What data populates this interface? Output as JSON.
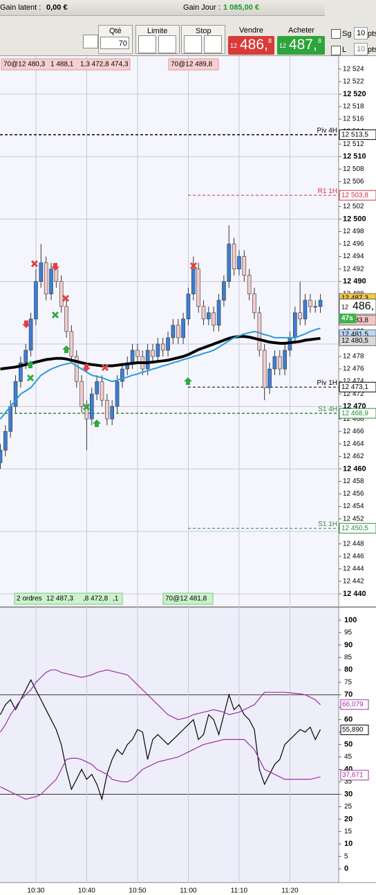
{
  "toolbar": {
    "gain_latent_label": "Gain latent :",
    "gain_latent": "0,00 €",
    "gain_jour_label": "Gain Jour :",
    "gain_jour": "1 085,00 €",
    "qty_label": "Qté",
    "qty": "70",
    "limit_label": "Limite",
    "stop_label": "Stop",
    "sell_label": "Vendre",
    "sell_prefix": "12",
    "sell_main": "486,",
    "sell_suffix": "8",
    "buy_label": "Acheter",
    "buy_prefix": "12",
    "buy_main": "487,",
    "buy_suffix": "8",
    "sg_label": "Sg",
    "sg_value": "10",
    "sg_unit": "pts",
    "l_label": "L",
    "l_value": "10",
    "l_unit": "pts"
  },
  "orders_top": [
    "70@12 480,3",
    "1 488,1",
    "1,3 472,8 474,3",
    "70@12 489,8"
  ],
  "orders_bottom": [
    "2 ordres",
    "12 487,3",
    ",8 472,8",
    ",1",
    "70@12 481,8"
  ],
  "current": {
    "prefix": "12",
    "main": "486,",
    "timer": "47s"
  },
  "chart_data": [
    {
      "type": "candlestick",
      "ylim": [
        12438,
        12526.2
      ],
      "grid": true,
      "up_color": "#3b7ed4",
      "down_color": "#f2cccc",
      "yticks": [
        {
          "value": 12440,
          "label": "12 440"
        },
        {
          "value": 12442,
          "label": "12 442"
        },
        {
          "value": 12444,
          "label": "12 444"
        },
        {
          "value": 12446,
          "label": "12 446"
        },
        {
          "value": 12448,
          "label": "12 448"
        },
        {
          "value": 12450,
          "label": "12 450"
        },
        {
          "value": 12452,
          "label": "12 452"
        },
        {
          "value": 12454,
          "label": "12 454"
        },
        {
          "value": 12456,
          "label": "12 456"
        },
        {
          "value": 12458,
          "label": "12 458"
        },
        {
          "value": 12460,
          "label": "12 460"
        },
        {
          "value": 12462,
          "label": "12 462"
        },
        {
          "value": 12464,
          "label": "12 464"
        },
        {
          "value": 12466,
          "label": "12 466"
        },
        {
          "value": 12468,
          "label": "12 468"
        },
        {
          "value": 12470,
          "label": "12 470"
        },
        {
          "value": 12472,
          "label": "12 472"
        },
        {
          "value": 12474,
          "label": "12 474"
        },
        {
          "value": 12476,
          "label": "12 476"
        },
        {
          "value": 12478,
          "label": "12 478"
        },
        {
          "value": 12480,
          "label": "12 480"
        },
        {
          "value": 12482,
          "label": "12 482"
        },
        {
          "value": 12484,
          "label": "12 484"
        },
        {
          "value": 12486,
          "label": "12 486"
        },
        {
          "value": 12488,
          "label": "12 488"
        },
        {
          "value": 12490,
          "label": "12 490"
        },
        {
          "value": 12492,
          "label": "12 492"
        },
        {
          "value": 12494,
          "label": "12 494"
        },
        {
          "value": 12496,
          "label": "12 496"
        },
        {
          "value": 12498,
          "label": "12 498"
        },
        {
          "value": 12500,
          "label": "12 500"
        },
        {
          "value": 12502,
          "label": "12 502"
        },
        {
          "value": 12504,
          "label": "12 504"
        },
        {
          "value": 12506,
          "label": "12 506"
        },
        {
          "value": 12508,
          "label": "12 508"
        },
        {
          "value": 12510,
          "label": "12 510"
        },
        {
          "value": 12512,
          "label": "12 512"
        },
        {
          "value": 12514,
          "label": "12 514"
        },
        {
          "value": 12516,
          "label": "12 516"
        },
        {
          "value": 12518,
          "label": "12 518"
        },
        {
          "value": 12520,
          "label": "12 520"
        },
        {
          "value": 12522,
          "label": "12 522"
        },
        {
          "value": 12524,
          "label": "12 524"
        }
      ],
      "open": [
        12461,
        12463,
        12466,
        12470,
        12474,
        12477,
        12479,
        12484,
        12490,
        12493,
        12488,
        12492,
        12490,
        12486,
        12482,
        12478,
        12474,
        12470,
        12468,
        12472,
        12474,
        12471,
        12468,
        12470,
        12474,
        12476,
        12477,
        12479,
        12478,
        12476,
        12479,
        12478,
        12480,
        12479,
        12481,
        12483,
        12481,
        12484,
        12488,
        12492,
        12486,
        12484,
        12485,
        12483,
        12487,
        12490,
        12496,
        12492,
        12494,
        12491,
        12488,
        12485,
        12479,
        12473,
        12476,
        12478,
        12476,
        12479,
        12481,
        12485,
        12484,
        12487,
        12486,
        12486
      ],
      "close": [
        12463,
        12466,
        12470,
        12474,
        12477,
        12479,
        12484,
        12490,
        12493,
        12488,
        12492,
        12490,
        12486,
        12482,
        12478,
        12474,
        12470,
        12468,
        12472,
        12474,
        12471,
        12468,
        12470,
        12474,
        12476,
        12477,
        12479,
        12478,
        12476,
        12479,
        12478,
        12480,
        12479,
        12481,
        12483,
        12481,
        12484,
        12488,
        12492,
        12486,
        12484,
        12485,
        12483,
        12487,
        12490,
        12496,
        12492,
        12494,
        12491,
        12488,
        12485,
        12479,
        12473,
        12476,
        12478,
        12476,
        12479,
        12481,
        12485,
        12484,
        12487,
        12486,
        12486,
        12487
      ],
      "high": [
        12464,
        12467,
        12471,
        12475,
        12478,
        12480,
        12485,
        12492,
        12496,
        12494,
        12493,
        12493,
        12491,
        12487,
        12483,
        12479,
        12475,
        12471,
        12473,
        12475,
        12475,
        12472,
        12471,
        12475,
        12477,
        12478,
        12480,
        12480,
        12479,
        12480,
        12480,
        12481,
        12481,
        12482,
        12484,
        12484,
        12485,
        12489,
        12494,
        12493,
        12487,
        12486,
        12486,
        12488,
        12491,
        12499,
        12497,
        12495,
        12495,
        12492,
        12489,
        12486,
        12480,
        12477,
        12479,
        12479,
        12480,
        12482,
        12486,
        12490,
        12488,
        12488,
        12487,
        12488
      ],
      "low": [
        12460,
        12462,
        12465,
        12469,
        12473,
        12476,
        12478,
        12483,
        12489,
        12487,
        12487,
        12489,
        12485,
        12481,
        12477,
        12473,
        12469,
        12463,
        12467,
        12471,
        12470,
        12467,
        12467,
        12469,
        12473,
        12475,
        12476,
        12477,
        12475,
        12475,
        12477,
        12477,
        12478,
        12478,
        12480,
        12480,
        12480,
        12483,
        12487,
        12485,
        12483,
        12483,
        12482,
        12482,
        12486,
        12489,
        12491,
        12491,
        12490,
        12487,
        12484,
        12478,
        12471,
        12472,
        12475,
        12475,
        12475,
        12478,
        12480,
        12483,
        12483,
        12485,
        12485,
        12485
      ],
      "series": [
        {
          "color": "#000000",
          "values": [
            12476,
            12476.1,
            12476.2,
            12476.3,
            12476.5,
            12476.7,
            12476.9,
            12477.1,
            12477.3,
            12477.5,
            12477.6,
            12477.7,
            12477.7,
            12477.6,
            12477.4,
            12477.2,
            12477,
            12476.8,
            12476.7,
            12476.6,
            12476.5,
            12476.5,
            12476.5,
            12476.6,
            12476.7,
            12476.8,
            12476.9,
            12477,
            12477,
            12477,
            12477.1,
            12477.2,
            12477.3,
            12477.4,
            12477.6,
            12477.8,
            12478,
            12478.3,
            12478.7,
            12479.1,
            12479.4,
            12479.7,
            12480,
            12480.3,
            12480.6,
            12480.9,
            12481.1,
            12481.2,
            12481.2,
            12481.1,
            12480.9,
            12480.7,
            12480.5,
            12480.3,
            12480.2,
            12480.1,
            12480.1,
            12480.2,
            12480.3,
            12480.4,
            12480.6,
            12480.7,
            12480.8,
            12480.9
          ]
        },
        {
          "color": "#2a9ad8",
          "values": [
            12468,
            12469,
            12470,
            12471,
            12472,
            12472.5,
            12473,
            12474,
            12475,
            12475.5,
            12476,
            12476.3,
            12476.6,
            12476.8,
            12477,
            12476.5,
            12476,
            12475.5,
            12475,
            12474.8,
            12474.6,
            12474.3,
            12474,
            12474.2,
            12474.5,
            12474.7,
            12475,
            12475.2,
            12475.5,
            12475.7,
            12476,
            12476.2,
            12476.5,
            12476.7,
            12477,
            12477.2,
            12477.5,
            12477.7,
            12478,
            12478.2,
            12478.5,
            12478.7,
            12479,
            12479.5,
            12480,
            12480.5,
            12481,
            12481.3,
            12481.6,
            12481.8,
            12482,
            12481.8,
            12481.5,
            12481.3,
            12481,
            12481,
            12481,
            12481,
            12481,
            12481.3,
            12481.6,
            12482,
            12482.3,
            12482.5
          ]
        }
      ],
      "levels": [
        {
          "label_text": "Piv 4H",
          "value": 12513.5,
          "value_label": "12 513,5",
          "color": "#000000",
          "full_width": true
        },
        {
          "label_text": "R1 1H",
          "value": 12503.8,
          "value_label": "12 503,8",
          "color": "#cc3344",
          "full_width": false
        },
        {
          "label_text": "Piv 1H",
          "value": 12473.1,
          "value_label": "12 473,1",
          "color": "#000000",
          "full_width": false
        },
        {
          "label_text": "S1 4H",
          "value": 12468.9,
          "value_label": "12 468,9",
          "color": "#2a8a3a",
          "full_width": true
        },
        {
          "label_text": "S1 1H",
          "value": 12450.5,
          "value_label": "12 450,5",
          "color": "#2a8a3a",
          "full_width": false
        }
      ],
      "price_labels": [
        {
          "value": 12487.3,
          "label": "12 487,3",
          "color": "#f5c842"
        },
        {
          "value": 12483.8,
          "label": "12 483,8",
          "color": "#f4c4c4"
        },
        {
          "value": 12481.5,
          "label": "12 481,5",
          "color": "#bcd8f4"
        },
        {
          "value": 12480.5,
          "label": "12 480,5",
          "color": "#d8d8d8"
        }
      ]
    },
    {
      "type": "line",
      "ylim": [
        -5.5,
        105
      ],
      "yticks": [
        0,
        5,
        10,
        15,
        20,
        25,
        30,
        35,
        40,
        45,
        50,
        55,
        60,
        65,
        70,
        75,
        80,
        85,
        90,
        95,
        100
      ],
      "hlines": [
        70,
        30
      ],
      "categories": [
        null,
        null,
        null,
        null,
        null,
        null,
        null,
        "10:30",
        null,
        null,
        null,
        null,
        null,
        null,
        null,
        null,
        null,
        "10:40",
        null,
        null,
        null,
        null,
        null,
        null,
        null,
        null,
        null,
        "10:50",
        null,
        null,
        null,
        null,
        null,
        null,
        null,
        null,
        null,
        "11:00",
        null,
        null,
        null,
        null,
        null,
        null,
        null,
        null,
        null,
        "11:10",
        null,
        null,
        null,
        null,
        null,
        null,
        null,
        null,
        null,
        "11:20",
        null,
        null,
        null,
        null,
        null,
        null
      ],
      "series": [
        {
          "color": "#000000",
          "values": [
            62,
            66,
            68,
            64,
            68,
            72,
            76,
            72,
            68,
            64,
            60,
            56,
            50,
            40,
            32,
            36,
            40,
            36,
            38,
            34,
            28,
            38,
            44,
            48,
            46,
            50,
            52,
            56,
            55,
            44,
            52,
            54,
            52,
            50,
            52,
            54,
            56,
            58,
            60,
            52,
            54,
            62,
            60,
            54,
            62,
            70,
            64,
            66,
            62,
            60,
            56,
            40,
            34,
            38,
            42,
            44,
            50,
            52,
            54,
            56,
            55,
            57,
            52,
            56
          ]
        },
        {
          "color": "#9b2fa0",
          "values": [
            55,
            58,
            62,
            65,
            68,
            70,
            72,
            75,
            77,
            79,
            80,
            80,
            79,
            78.5,
            78,
            77.5,
            77,
            77.5,
            78,
            79,
            79.5,
            80,
            79.5,
            79,
            78.5,
            78,
            76,
            74,
            72,
            70,
            68,
            66,
            64,
            62,
            61,
            60,
            60.5,
            61,
            62,
            62.5,
            63,
            63.5,
            64,
            63.5,
            63,
            62,
            62.5,
            63,
            64,
            65,
            66,
            68.5,
            71,
            71,
            71,
            71,
            71,
            70.8,
            70.6,
            70.4,
            70,
            69,
            68,
            66
          ]
        },
        {
          "color": "#9b2fa0",
          "values": [
            33,
            32,
            31,
            30,
            29,
            28,
            28.5,
            29,
            30,
            32,
            34,
            36,
            40,
            44,
            44.5,
            44.5,
            44,
            43,
            42,
            40,
            39,
            38,
            36,
            35.5,
            35,
            35,
            36,
            38,
            40,
            41,
            42,
            43,
            43.5,
            44,
            44.5,
            45,
            46,
            47,
            48,
            49,
            50,
            50.5,
            51,
            51.5,
            52,
            52,
            52,
            52,
            52,
            50,
            48,
            44,
            40,
            39,
            38,
            37,
            36,
            36,
            36,
            36,
            36,
            36,
            36.5,
            37
          ]
        }
      ],
      "value_labels": [
        {
          "value": 66.079,
          "label": "66,079",
          "color": "#9b2fa0"
        },
        {
          "value": 55.89,
          "label": "55,890",
          "color": "#000000"
        },
        {
          "value": 37.671,
          "label": "37,671",
          "color": "#9b2fa0"
        }
      ]
    }
  ]
}
